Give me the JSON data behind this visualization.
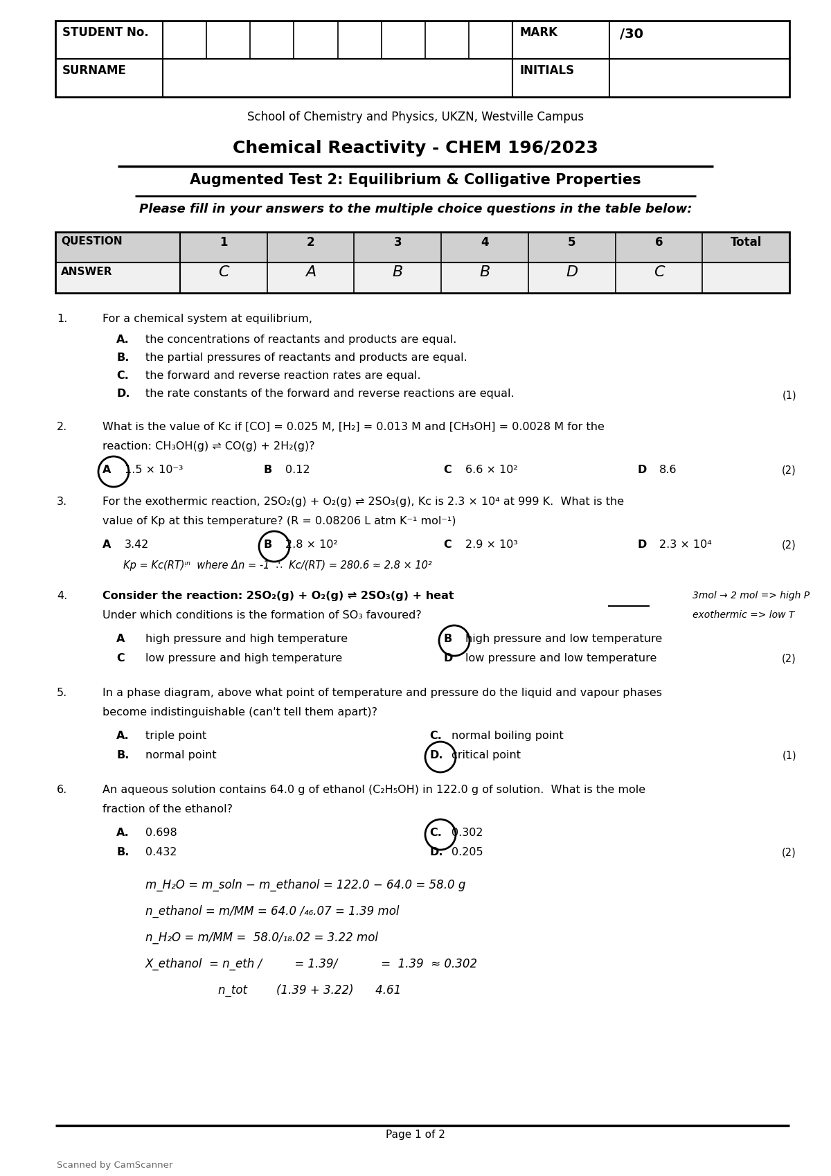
{
  "bg_color": "#ffffff",
  "institution": "School of Chemistry and Physics, UKZN, Westville Campus",
  "course_title": "Chemical Reactivity - CHEM 196/2023",
  "test_title": "Augmented Test 2: Equilibrium & Colligative Properties",
  "instruction": "Please fill in your answers to the multiple choice questions in the table below:",
  "answer_table_headers": [
    "QUESTION",
    "1",
    "2",
    "3",
    "4",
    "5",
    "6",
    "Total"
  ],
  "answer_table_answers": [
    "ANSWER",
    "C",
    "A",
    "B",
    "B",
    "D",
    "C",
    ""
  ],
  "q1_text": "For a chemical system at equilibrium,",
  "q1_opts": [
    [
      "A.",
      "the concentrations of reactants and products are equal."
    ],
    [
      "B.",
      "the partial pressures of reactants and products are equal."
    ],
    [
      "C.",
      "the forward and reverse reaction rates are equal."
    ],
    [
      "D.",
      "the rate constants of the forward and reverse reactions are equal."
    ]
  ],
  "q1_marks": "(1)",
  "q2_line1": "What is the value of Kc if [CO] = 0.025 M, [H₂] = 0.013 M and [CH₃OH] = 0.0028 M for the",
  "q2_line2": "reaction: CH₃OH(g) ⇌ CO(g) + 2H₂(g)?",
  "q2_opts": [
    [
      "A",
      "1.5 × 10⁻³",
      true
    ],
    [
      "B",
      "0.12",
      false
    ],
    [
      "C",
      "6.6 × 10²",
      false
    ],
    [
      "D",
      "8.6",
      false
    ]
  ],
  "q2_marks": "(2)",
  "q3_line1": "For the exothermic reaction, 2SO₂(g) + O₂(g) ⇌ 2SO₃(g), Kc is 2.3 × 10⁴ at 999 K.  What is the",
  "q3_line2": "value of Kp at this temperature? (R = 0.08206 L atm K⁻¹ mol⁻¹)",
  "q3_opts": [
    [
      "A",
      "3.42",
      false
    ],
    [
      "B",
      "2.8 × 10²",
      true
    ],
    [
      "C",
      "2.9 × 10³",
      false
    ],
    [
      "D",
      "2.3 × 10⁴",
      false
    ]
  ],
  "q3_marks": "(2)",
  "q3_working": "Kp = Kc(RT)ᵎⁿ  where Δn = -1  ∴  Kc/(RT) = 280.6 ≈ 2.8 × 10²",
  "q4_line1": "Consider the reaction: 2SO₂(g) + O₂(g) ⇌ 2SO₃(g) + heat",
  "q4_line2": "Under which conditions is the formation of SO₃ favoured?",
  "q4_sidenote1": "3mol → 2 mol => high P",
  "q4_sidenote2": "exothermic => low T",
  "q4_opts_left": [
    [
      "A",
      "high pressure and high temperature",
      false
    ],
    [
      "C",
      "low pressure and high temperature",
      false
    ]
  ],
  "q4_opts_right": [
    [
      "B",
      "high pressure and low temperature",
      true
    ],
    [
      "D",
      "low pressure and low temperature",
      false
    ]
  ],
  "q4_marks": "(2)",
  "q5_line1": "In a phase diagram, above what point of temperature and pressure do the liquid and vapour phases",
  "q5_line2": "become indistinguishable (can't tell them apart)?",
  "q5_opts_left": [
    [
      "A.",
      "triple point"
    ],
    [
      "B.",
      "normal point"
    ]
  ],
  "q5_opts_right": [
    [
      "C.",
      "normal boiling point",
      false
    ],
    [
      "D.",
      "critical point",
      true
    ]
  ],
  "q5_marks": "(1)",
  "q6_line1": "An aqueous solution contains 64.0 g of ethanol (C₂H₅OH) in 122.0 g of solution.  What is the mole",
  "q6_line2": "fraction of the ethanol?",
  "q6_opts_left": [
    [
      "A.",
      "0.698",
      false
    ],
    [
      "B.",
      "0.432",
      false
    ]
  ],
  "q6_opts_right": [
    [
      "C.",
      "0.302",
      true
    ],
    [
      "D.",
      "0.205",
      false
    ]
  ],
  "q6_marks": "(2)",
  "q6_work1": "m_H₂O = m_soln − m_ethanol = 122.0 − 64.0 = 58.0 g",
  "q6_work2": "n_ethanol = m/MM = 64.0 /₄₆.07 = 1.39 mol",
  "q6_work3": "n_H₂O = m/MM =  58.0/₁₈.02 = 3.22 mol",
  "q6_work4": "X_ethanol  = n_eth /         = 1.39/            =  1.39  ≈ 0.302",
  "q6_work4b": "                    n_tot        (1.39 + 3.22)      4.61",
  "footer": "Page 1 of 2",
  "footer2": "Scanned by CamScanner"
}
